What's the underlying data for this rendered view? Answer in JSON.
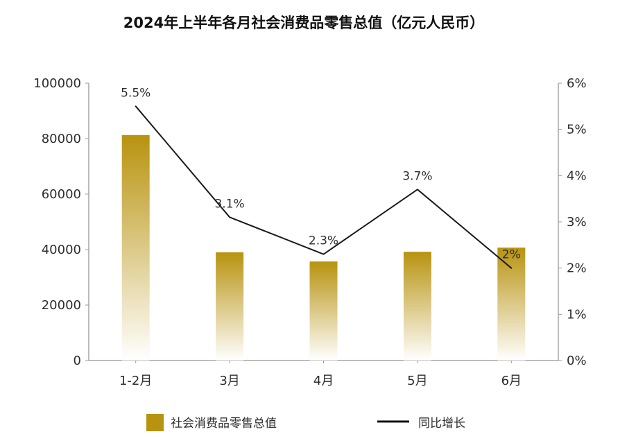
{
  "chart_data": {
    "type": "bar",
    "title": "2024年上半年各月社会消费品零售总值（亿元人民币）",
    "categories": [
      "1-2月",
      "3月",
      "4月",
      "5月",
      "6月"
    ],
    "left_axis": {
      "min": 0,
      "max": 100000,
      "ticks": [
        "100000",
        "80000",
        "60000",
        "40000",
        "20000",
        "0"
      ]
    },
    "right_axis": {
      "min": 0,
      "max": 6,
      "ticks": [
        "6%",
        "5%",
        "4%",
        "3%",
        "2%",
        "1%",
        "0%"
      ]
    },
    "series": [
      {
        "name": "社会消费品零售总值",
        "type": "bar",
        "values": [
          81300,
          39000,
          35700,
          39200,
          40700
        ],
        "color_top": "#b8930f",
        "color_bottom": "#ffffff"
      },
      {
        "name": "同比增长",
        "type": "line",
        "values": [
          5.5,
          3.1,
          2.3,
          3.7,
          2.0
        ],
        "labels": [
          "5.5%",
          "3.1%",
          "2.3%",
          "3.7%",
          "2%"
        ],
        "color": "#1a1a1a"
      }
    ],
    "legend": {
      "placement": "bottom",
      "items": [
        {
          "label": "社会消费品零售总值",
          "color": "#b8930f"
        },
        {
          "label": "同比增长",
          "color": "#111111"
        }
      ]
    },
    "grid": false
  }
}
